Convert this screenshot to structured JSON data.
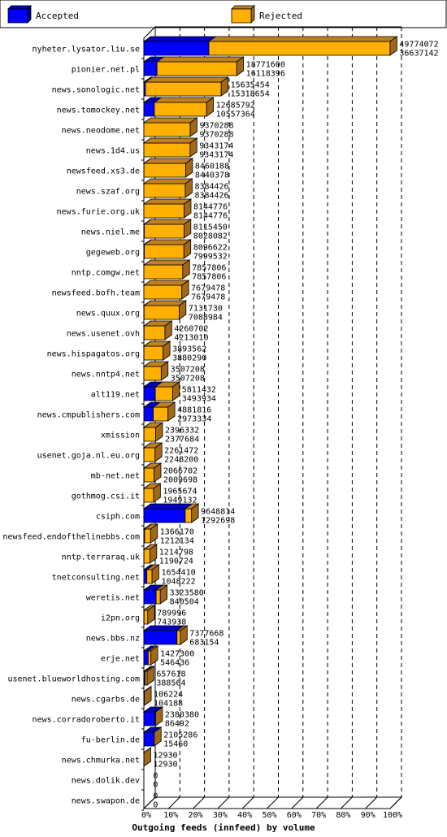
{
  "chart_data": {
    "type": "bar",
    "title": "Outgoing feeds (innfeed) by volume",
    "xlabel": "Outgoing feeds (innfeed) by volume",
    "ylabel": "",
    "xlim": [
      0,
      100
    ],
    "x_ticks": [
      "0%",
      "10%",
      "20%",
      "30%",
      "40%",
      "50%",
      "60%",
      "70%",
      "80%",
      "90%",
      "100%"
    ],
    "legend_position": "top",
    "colors": {
      "accepted_front": "#0000ff",
      "accepted_top": "#0000c0",
      "accepted_side": "#000080",
      "rejected_front": "#ffb000",
      "rejected_top": "#c08020",
      "rejected_side": "#a06818"
    },
    "series": [
      {
        "name": "Accepted"
      },
      {
        "name": "Rejected"
      }
    ],
    "rows": [
      {
        "label": "nyheter.lysator.liu.se",
        "accepted": 49774072,
        "rejected": 36637142
      },
      {
        "label": "pionier.net.pl",
        "accepted": 18771600,
        "rejected": 16118396
      },
      {
        "label": "news.sonologic.net",
        "accepted": 15635454,
        "rejected": 15318654
      },
      {
        "label": "news.tomockey.net",
        "accepted": 12685792,
        "rejected": 10557364
      },
      {
        "label": "news.neodome.net",
        "accepted": 9370288,
        "rejected": 9370288
      },
      {
        "label": "news.1d4.us",
        "accepted": 9343174,
        "rejected": 9343174
      },
      {
        "label": "newsfeed.xs3.de",
        "accepted": 8460188,
        "rejected": 8440378
      },
      {
        "label": "news.szaf.org",
        "accepted": 8384426,
        "rejected": 8384426
      },
      {
        "label": "news.furie.org.uk",
        "accepted": 8144776,
        "rejected": 8144776
      },
      {
        "label": "news.niel.me",
        "accepted": 8115450,
        "rejected": 8028082
      },
      {
        "label": "gegeweb.org",
        "accepted": 8096622,
        "rejected": 7999532
      },
      {
        "label": "nntp.comgw.net",
        "accepted": 7857806,
        "rejected": 7857806
      },
      {
        "label": "newsfeed.bofh.team",
        "accepted": 7679478,
        "rejected": 7679478
      },
      {
        "label": "news.quux.org",
        "accepted": 7131730,
        "rejected": 7088984
      },
      {
        "label": "news.usenet.ovh",
        "accepted": 4260702,
        "rejected": 4213010
      },
      {
        "label": "news.hispagatos.org",
        "accepted": 3893562,
        "rejected": 3880290
      },
      {
        "label": "news.nntp4.net",
        "accepted": 3507208,
        "rejected": 3507208
      },
      {
        "label": "alt119.net",
        "accepted": 5811432,
        "rejected": 3493934
      },
      {
        "label": "news.cmpublishers.com",
        "accepted": 4881816,
        "rejected": 2973334
      },
      {
        "label": "xmission",
        "accepted": 2396332,
        "rejected": 2377684
      },
      {
        "label": "usenet.goja.nl.eu.org",
        "accepted": 2261472,
        "rejected": 2248200
      },
      {
        "label": "mb-net.net",
        "accepted": 2066702,
        "rejected": 2009698
      },
      {
        "label": "gothmog.csi.it",
        "accepted": 1965674,
        "rejected": 1949132
      },
      {
        "label": "csiph.com",
        "accepted": 9648814,
        "rejected": 1292698
      },
      {
        "label": "newsfeed.endofthelinebbs.com",
        "accepted": 1366170,
        "rejected": 1212134
      },
      {
        "label": "nntp.terraraq.uk",
        "accepted": 1214798,
        "rejected": 1190724
      },
      {
        "label": "tnetconsulting.net",
        "accepted": 1654410,
        "rejected": 1048222
      },
      {
        "label": "weretis.net",
        "accepted": 3323580,
        "rejected": 840504
      },
      {
        "label": "i2pn.org",
        "accepted": 789996,
        "rejected": 743938
      },
      {
        "label": "news.bbs.nz",
        "accepted": 7377668,
        "rejected": 683154
      },
      {
        "label": "erje.net",
        "accepted": 1427300,
        "rejected": 546436
      },
      {
        "label": "usenet.blueworldhosting.com",
        "accepted": 657618,
        "rejected": 388564
      },
      {
        "label": "news.cgarbs.de",
        "accepted": 106224,
        "rejected": 104188
      },
      {
        "label": "news.corradoroberto.it",
        "accepted": 2380380,
        "rejected": 86492
      },
      {
        "label": "fu-berlin.de",
        "accepted": 2105286,
        "rejected": 15460
      },
      {
        "label": "news.chmurka.net",
        "accepted": 12930,
        "rejected": 12930
      },
      {
        "label": "news.dolik.dev",
        "accepted": 0,
        "rejected": 0
      },
      {
        "label": "news.swapon.de",
        "accepted": 0,
        "rejected": 0
      }
    ]
  }
}
